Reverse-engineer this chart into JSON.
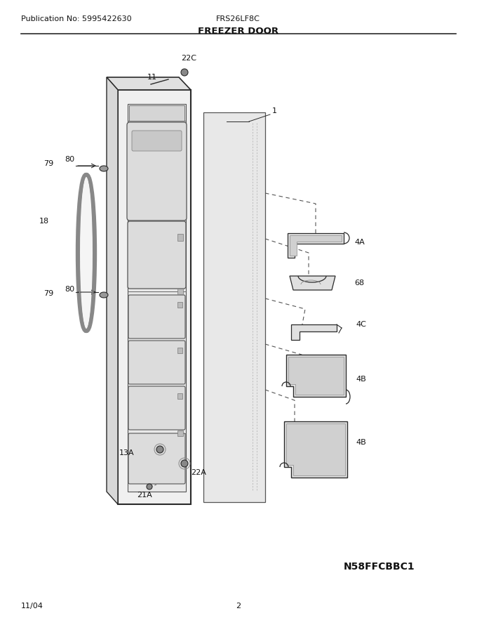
{
  "pub_no": "Publication No: 5995422630",
  "model": "FRS26LF8C",
  "title": "FREEZER DOOR",
  "diagram_code": "N58FFCBBC1",
  "date": "11/04",
  "page": "2",
  "bg_color": "#ffffff"
}
